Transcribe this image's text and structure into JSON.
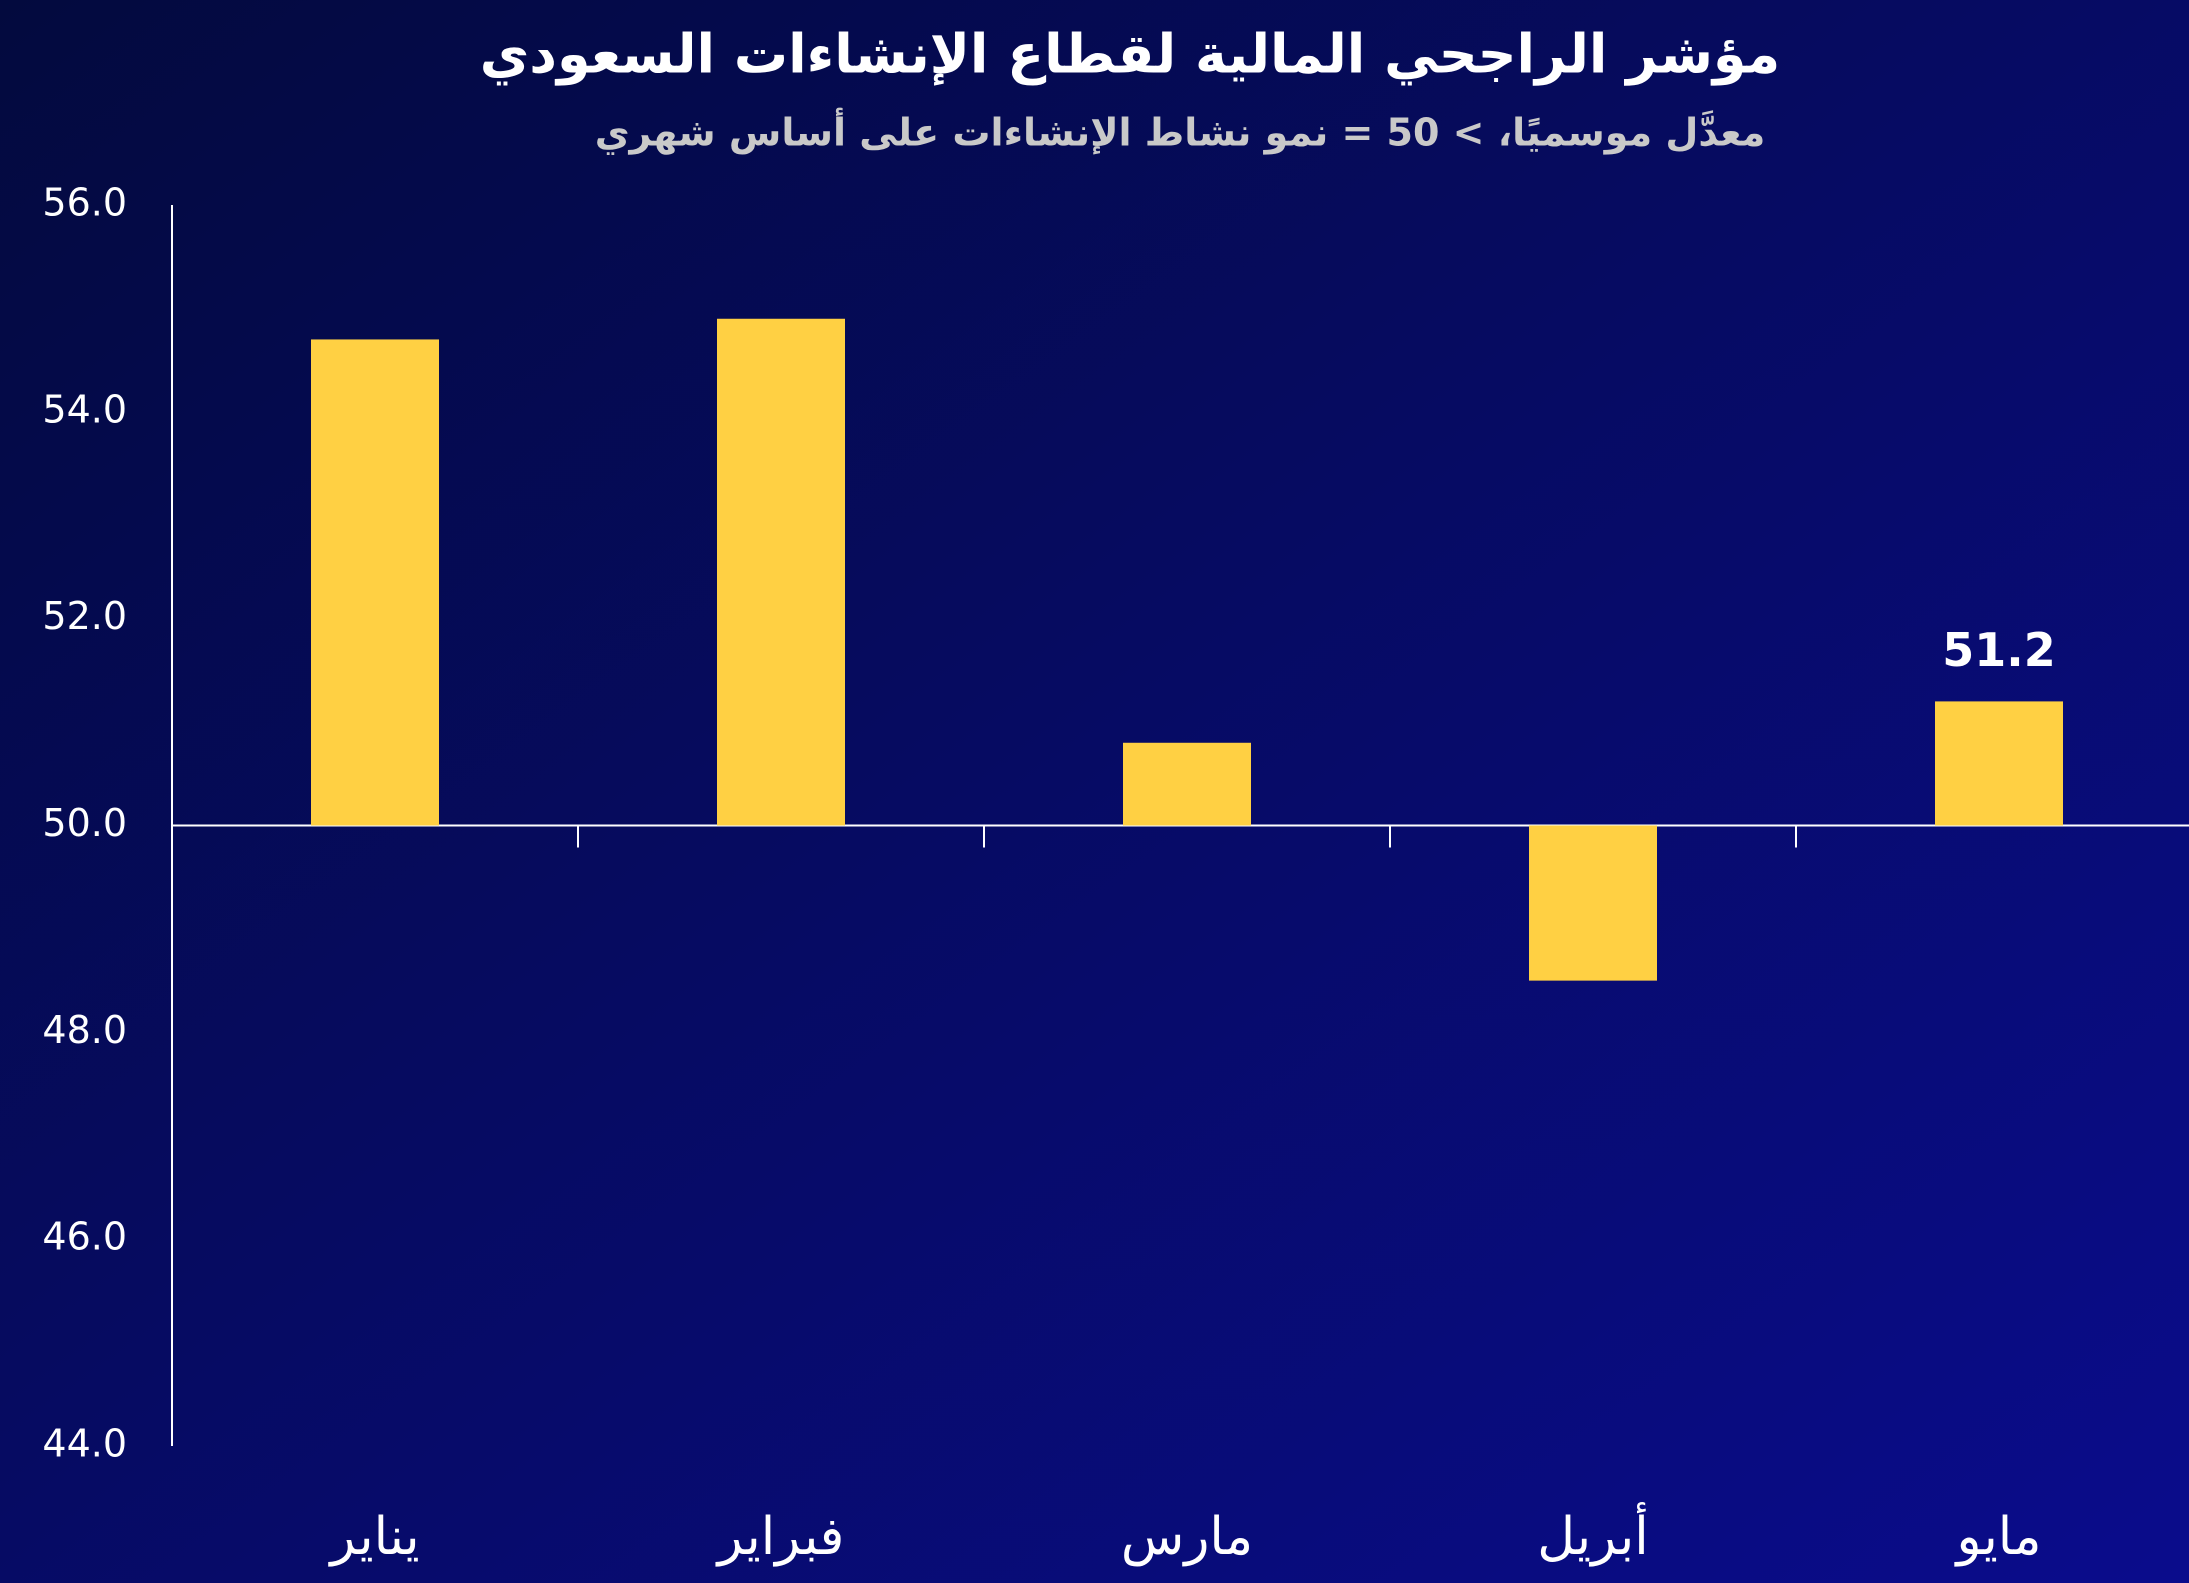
{
  "chart_data": {
    "type": "bar",
    "title": "مؤشر الراجحي المالية لقطاع الإنشاءات السعودي",
    "subtitle": "معدَّل موسميًا، > 50 = نمو نشاط الإنشاءات على أساس شهري",
    "categories": [
      "يناير",
      "فبراير",
      "مارس",
      "أبريل",
      "مايو"
    ],
    "values": [
      54.7,
      54.9,
      50.8,
      48.5,
      51.2
    ],
    "value_labels": [
      null,
      null,
      null,
      null,
      "51.2"
    ],
    "color": "#ffd043",
    "baseline": 50,
    "ylim": [
      44,
      56
    ],
    "yticks": [
      {
        "value": 44,
        "label": "44.0"
      },
      {
        "value": 46,
        "label": "46.0"
      },
      {
        "value": 48,
        "label": "48.0"
      },
      {
        "value": 50,
        "label": "50.0"
      },
      {
        "value": 52,
        "label": "52.0"
      },
      {
        "value": 54,
        "label": "54.0"
      },
      {
        "value": 56,
        "label": "56.0"
      }
    ],
    "grid": false
  }
}
